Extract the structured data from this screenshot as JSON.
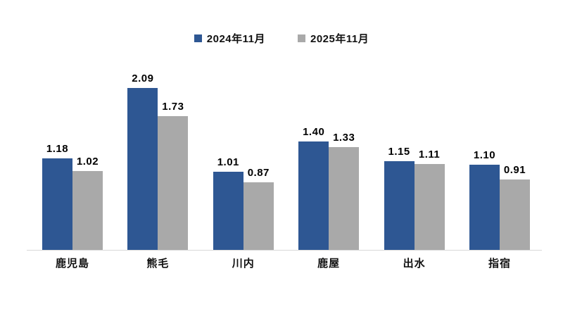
{
  "chart_data": {
    "type": "bar",
    "title": "",
    "xlabel": "",
    "ylabel": "",
    "categories": [
      "鹿児島",
      "熊毛",
      "川内",
      "鹿屋",
      "出水",
      "指宿"
    ],
    "series": [
      {
        "name": "2024年11月",
        "color": "#2E5793",
        "values": [
          1.18,
          2.09,
          1.01,
          1.4,
          1.15,
          1.1
        ],
        "value_labels": [
          "1.18",
          "2.09",
          "1.01",
          "1.40",
          "1.15",
          "1.10"
        ]
      },
      {
        "name": "2025年11月",
        "color": "#A9A9A9",
        "values": [
          1.02,
          1.73,
          0.87,
          1.33,
          1.11,
          0.91
        ],
        "value_labels": [
          "1.02",
          "1.73",
          "0.87",
          "1.33",
          "1.11",
          "0.91"
        ]
      }
    ],
    "ylim": [
      0,
      2.5
    ],
    "grid": false,
    "y_axis_visible": false,
    "legend_position": "top-center",
    "value_labels_shown": true
  },
  "colors": {
    "background": "#FFFFFF",
    "axis_line": "#D9D9D9",
    "label_text": "#000000",
    "series_1": "#2E5793",
    "series_2": "#A9A9A9"
  }
}
